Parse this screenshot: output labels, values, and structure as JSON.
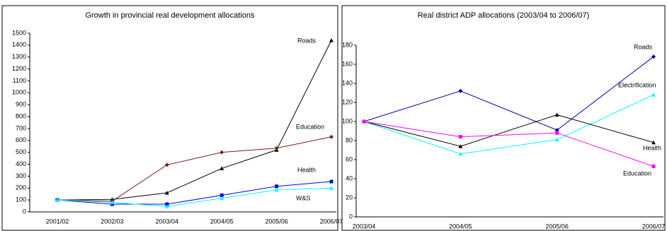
{
  "chart_data": [
    {
      "type": "line",
      "title": "Growth in provincial real development allocations",
      "categories": [
        "2001/02",
        "2002/03",
        "2003/04",
        "2004/05",
        "2005/06",
        "2006/07"
      ],
      "ylim": [
        0,
        1500
      ],
      "yticks": [
        0,
        100,
        200,
        300,
        400,
        500,
        600,
        700,
        800,
        900,
        1000,
        1100,
        1200,
        1300,
        1400,
        1500
      ],
      "series": [
        {
          "name": "Roads",
          "color": "#000000",
          "marker": "triangle",
          "values": [
            100,
            105,
            160,
            365,
            520,
            1440
          ]
        },
        {
          "name": "Education",
          "color": "#7f1f1f",
          "marker": "diamond",
          "values": [
            100,
            90,
            395,
            500,
            535,
            630
          ]
        },
        {
          "name": "Health",
          "color": "#0000ff",
          "marker": "square",
          "values": [
            100,
            65,
            65,
            140,
            215,
            255
          ]
        },
        {
          "name": "W&S",
          "color": "#00ffff",
          "marker": "triangle",
          "values": [
            100,
            80,
            45,
            115,
            185,
            200
          ]
        }
      ]
    },
    {
      "type": "line",
      "title": "Real district ADP allocations (2003/04 to 2006/07)",
      "categories": [
        "2003/04",
        "2004/05",
        "2005/06",
        "2006/07"
      ],
      "ylim": [
        0,
        180
      ],
      "yticks": [
        0,
        20,
        40,
        60,
        80,
        100,
        120,
        140,
        160,
        180
      ],
      "series": [
        {
          "name": "Roads",
          "color": "#0000aa",
          "marker": "diamond",
          "values": [
            100,
            132,
            91,
            168
          ]
        },
        {
          "name": "Electrification",
          "color": "#00ffff",
          "marker": "triangle",
          "values": [
            100,
            66,
            81,
            128
          ]
        },
        {
          "name": "Health",
          "color": "#000000",
          "marker": "triangle",
          "values": [
            100,
            74,
            107,
            78
          ]
        },
        {
          "name": "Education",
          "color": "#ff00ff",
          "marker": "square",
          "values": [
            100,
            84,
            88,
            53
          ]
        }
      ]
    }
  ]
}
